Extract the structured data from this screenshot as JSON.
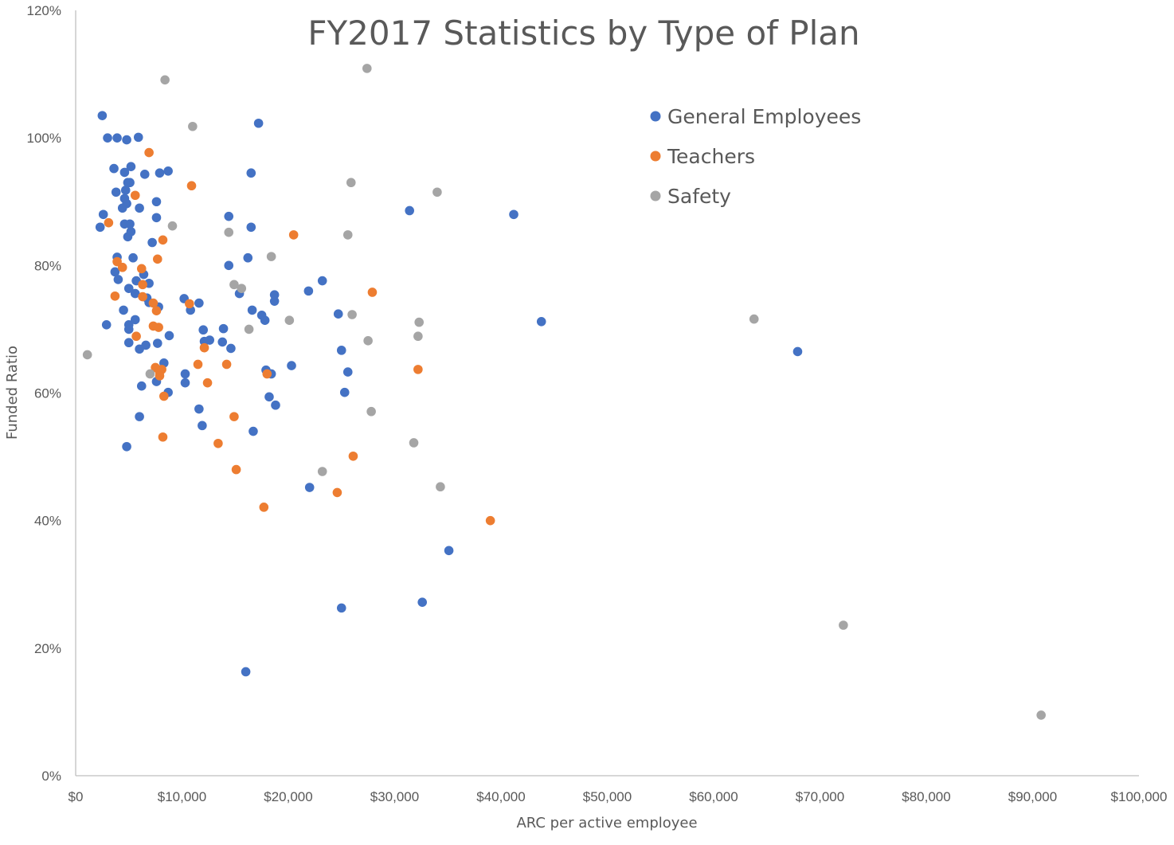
{
  "chart_data": {
    "type": "scatter",
    "title": "FY2017 Statistics by Type of Plan",
    "xlabel": "ARC per active employee",
    "ylabel": "Funded Ratio",
    "xlim": [
      0,
      100000
    ],
    "ylim": [
      0,
      1.2
    ],
    "x_ticks": [
      0,
      10000,
      20000,
      30000,
      40000,
      50000,
      60000,
      70000,
      80000,
      90000,
      100000
    ],
    "x_tick_labels": [
      "$0",
      "$10,000",
      "$20,000",
      "$30,000",
      "$40,000",
      "$50,000",
      "$60,000",
      "$70,000",
      "$80,000",
      "$90,000",
      "$100,000"
    ],
    "y_ticks": [
      0,
      0.2,
      0.4,
      0.6,
      0.8,
      1.0,
      1.2
    ],
    "y_tick_labels": [
      "0%",
      "20%",
      "40%",
      "60%",
      "80%",
      "100%",
      "120%"
    ],
    "grid": false,
    "legend_position": "top-right",
    "series": [
      {
        "name": "General Employees",
        "color": "#4472c4",
        "points": [
          [
            2500,
            1.035
          ],
          [
            3000,
            1.0
          ],
          [
            3900,
            1.0
          ],
          [
            4800,
            0.997
          ],
          [
            5900,
            1.001
          ],
          [
            17200,
            1.023
          ],
          [
            3600,
            0.952
          ],
          [
            5200,
            0.955
          ],
          [
            4600,
            0.946
          ],
          [
            6500,
            0.943
          ],
          [
            7900,
            0.945
          ],
          [
            8700,
            0.948
          ],
          [
            16500,
            0.945
          ],
          [
            4900,
            0.93
          ],
          [
            5100,
            0.93
          ],
          [
            3800,
            0.915
          ],
          [
            4700,
            0.918
          ],
          [
            4600,
            0.905
          ],
          [
            4800,
            0.897
          ],
          [
            4400,
            0.89
          ],
          [
            6000,
            0.89
          ],
          [
            7600,
            0.9
          ],
          [
            2600,
            0.88
          ],
          [
            7600,
            0.875
          ],
          [
            14400,
            0.877
          ],
          [
            31400,
            0.886
          ],
          [
            41200,
            0.88
          ],
          [
            2300,
            0.86
          ],
          [
            4600,
            0.865
          ],
          [
            5100,
            0.865
          ],
          [
            5200,
            0.853
          ],
          [
            4900,
            0.845
          ],
          [
            16500,
            0.86
          ],
          [
            5400,
            0.812
          ],
          [
            3900,
            0.813
          ],
          [
            7200,
            0.836
          ],
          [
            16200,
            0.812
          ],
          [
            14400,
            0.8
          ],
          [
            3700,
            0.79
          ],
          [
            6400,
            0.786
          ],
          [
            4000,
            0.778
          ],
          [
            5700,
            0.776
          ],
          [
            6900,
            0.772
          ],
          [
            23200,
            0.776
          ],
          [
            5000,
            0.764
          ],
          [
            5600,
            0.756
          ],
          [
            6700,
            0.749
          ],
          [
            10200,
            0.748
          ],
          [
            15400,
            0.756
          ],
          [
            18700,
            0.754
          ],
          [
            21900,
            0.76
          ],
          [
            6900,
            0.742
          ],
          [
            7800,
            0.735
          ],
          [
            11600,
            0.741
          ],
          [
            18700,
            0.744
          ],
          [
            4500,
            0.73
          ],
          [
            10800,
            0.73
          ],
          [
            16600,
            0.73
          ],
          [
            17500,
            0.722
          ],
          [
            17800,
            0.714
          ],
          [
            24700,
            0.724
          ],
          [
            43800,
            0.712
          ],
          [
            2900,
            0.707
          ],
          [
            5000,
            0.707
          ],
          [
            5000,
            0.7
          ],
          [
            5600,
            0.715
          ],
          [
            12000,
            0.699
          ],
          [
            13900,
            0.701
          ],
          [
            8800,
            0.69
          ],
          [
            12100,
            0.681
          ],
          [
            12600,
            0.683
          ],
          [
            13800,
            0.68
          ],
          [
            5000,
            0.679
          ],
          [
            6600,
            0.675
          ],
          [
            7700,
            0.678
          ],
          [
            6000,
            0.669
          ],
          [
            14600,
            0.67
          ],
          [
            25000,
            0.667
          ],
          [
            67900,
            0.665
          ],
          [
            8300,
            0.647
          ],
          [
            20300,
            0.643
          ],
          [
            25600,
            0.633
          ],
          [
            10300,
            0.63
          ],
          [
            18400,
            0.63
          ],
          [
            17900,
            0.636
          ],
          [
            7600,
            0.618
          ],
          [
            10300,
            0.616
          ],
          [
            6200,
            0.611
          ],
          [
            8700,
            0.601
          ],
          [
            25300,
            0.601
          ],
          [
            18200,
            0.594
          ],
          [
            18800,
            0.581
          ],
          [
            11600,
            0.575
          ],
          [
            6000,
            0.563
          ],
          [
            11900,
            0.549
          ],
          [
            16700,
            0.54
          ],
          [
            4800,
            0.516
          ],
          [
            22000,
            0.452
          ],
          [
            35100,
            0.353
          ],
          [
            32600,
            0.272
          ],
          [
            25000,
            0.263
          ],
          [
            16000,
            0.163
          ]
        ]
      },
      {
        "name": "Teachers",
        "color": "#ed7d31",
        "points": [
          [
            6900,
            0.977
          ],
          [
            10900,
            0.925
          ],
          [
            5600,
            0.91
          ],
          [
            3100,
            0.867
          ],
          [
            20500,
            0.848
          ],
          [
            8200,
            0.84
          ],
          [
            3900,
            0.806
          ],
          [
            7700,
            0.81
          ],
          [
            4400,
            0.797
          ],
          [
            6200,
            0.795
          ],
          [
            6300,
            0.77
          ],
          [
            3700,
            0.752
          ],
          [
            27900,
            0.758
          ],
          [
            6300,
            0.751
          ],
          [
            7300,
            0.741
          ],
          [
            10700,
            0.74
          ],
          [
            7600,
            0.729
          ],
          [
            7300,
            0.705
          ],
          [
            7800,
            0.703
          ],
          [
            5700,
            0.689
          ],
          [
            12100,
            0.671
          ],
          [
            11500,
            0.645
          ],
          [
            14200,
            0.645
          ],
          [
            7500,
            0.64
          ],
          [
            8100,
            0.637
          ],
          [
            7900,
            0.633
          ],
          [
            7900,
            0.627
          ],
          [
            32200,
            0.637
          ],
          [
            18000,
            0.63
          ],
          [
            12400,
            0.616
          ],
          [
            8300,
            0.595
          ],
          [
            14900,
            0.563
          ],
          [
            8200,
            0.531
          ],
          [
            13400,
            0.521
          ],
          [
            26100,
            0.501
          ],
          [
            15100,
            0.48
          ],
          [
            24600,
            0.444
          ],
          [
            17700,
            0.421
          ],
          [
            39000,
            0.4
          ]
        ]
      },
      {
        "name": "Safety",
        "color": "#a5a5a5",
        "points": [
          [
            27400,
            1.109
          ],
          [
            8400,
            1.091
          ],
          [
            11000,
            1.018
          ],
          [
            25900,
            0.93
          ],
          [
            34000,
            0.915
          ],
          [
            9100,
            0.862
          ],
          [
            14400,
            0.852
          ],
          [
            25600,
            0.848
          ],
          [
            18400,
            0.814
          ],
          [
            14900,
            0.77
          ],
          [
            15600,
            0.764
          ],
          [
            26000,
            0.723
          ],
          [
            20100,
            0.714
          ],
          [
            32300,
            0.711
          ],
          [
            63800,
            0.716
          ],
          [
            16300,
            0.7
          ],
          [
            32200,
            0.689
          ],
          [
            27500,
            0.682
          ],
          [
            1100,
            0.66
          ],
          [
            7000,
            0.63
          ],
          [
            27800,
            0.571
          ],
          [
            31800,
            0.522
          ],
          [
            23200,
            0.477
          ],
          [
            34300,
            0.453
          ],
          [
            72200,
            0.236
          ],
          [
            90800,
            0.095
          ]
        ]
      }
    ]
  }
}
